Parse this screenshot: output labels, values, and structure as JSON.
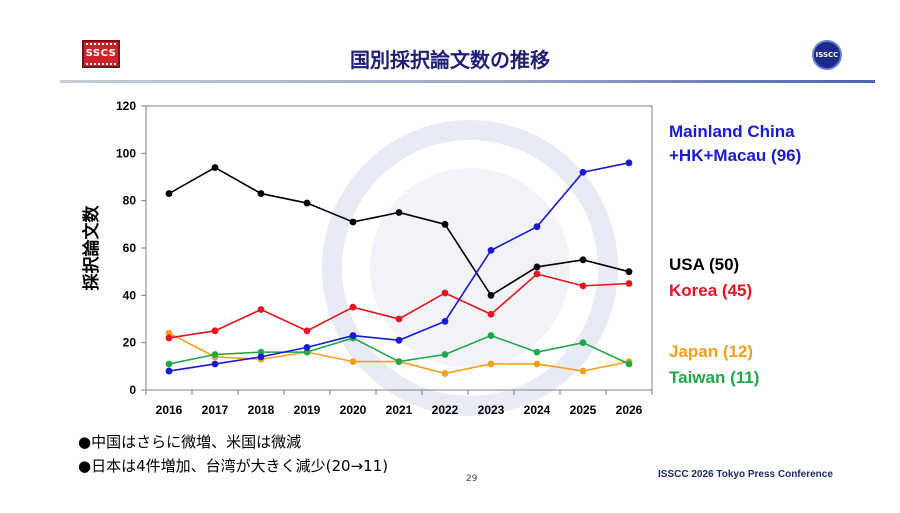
{
  "header": {
    "title": "国別採択論文数の推移",
    "logo_left_text": "SSCS",
    "logo_right_text": "ISSCC"
  },
  "chart_data": {
    "type": "line",
    "title": "国別採択論文数の推移",
    "xlabel": "",
    "ylabel": "採択論文数",
    "categories": [
      "2016",
      "2017",
      "2018",
      "2019",
      "2020",
      "2021",
      "2022",
      "2023",
      "2024",
      "2025",
      "2026"
    ],
    "ylim": [
      0,
      120
    ],
    "yticks": [
      0,
      20,
      40,
      60,
      80,
      100,
      120
    ],
    "grid": false,
    "series": [
      {
        "name": "USA",
        "color": "#000000",
        "values": [
          83,
          94,
          83,
          79,
          71,
          75,
          70,
          40,
          52,
          55,
          50
        ]
      },
      {
        "name": "Korea",
        "color": "#e8131c",
        "values": [
          22,
          25,
          34,
          25,
          35,
          30,
          41,
          32,
          49,
          44,
          45
        ]
      },
      {
        "name": "Mainland China +HK+Macau",
        "color": "#1a1ad6",
        "values": [
          8,
          11,
          14,
          18,
          23,
          21,
          29,
          59,
          69,
          92,
          96
        ]
      },
      {
        "name": "Japan",
        "color": "#f5a01a",
        "values": [
          24,
          14,
          13,
          16,
          12,
          12,
          7,
          11,
          11,
          8,
          12
        ]
      },
      {
        "name": "Taiwan",
        "color": "#1fa84a",
        "values": [
          11,
          15,
          16,
          16,
          22,
          12,
          15,
          23,
          16,
          20,
          11
        ]
      }
    ]
  },
  "labels": {
    "china_line1": "Mainland China",
    "china_line2": "+HK+Macau (96)",
    "usa": "USA (50)",
    "korea": "Korea (45)",
    "japan": "Japan (12)",
    "taiwan": "Taiwan (11)"
  },
  "colors": {
    "china": "#1a1ad6",
    "usa": "#000000",
    "korea": "#e8131c",
    "japan": "#f5a01a",
    "taiwan": "#1fa84a"
  },
  "bullets": [
    "●中国はさらに微増、米国は微減",
    "●日本は4件増加、台湾が大きく減少(20→11)"
  ],
  "page_number": "29",
  "footer": "ISSCC 2026 Tokyo Press Conference"
}
